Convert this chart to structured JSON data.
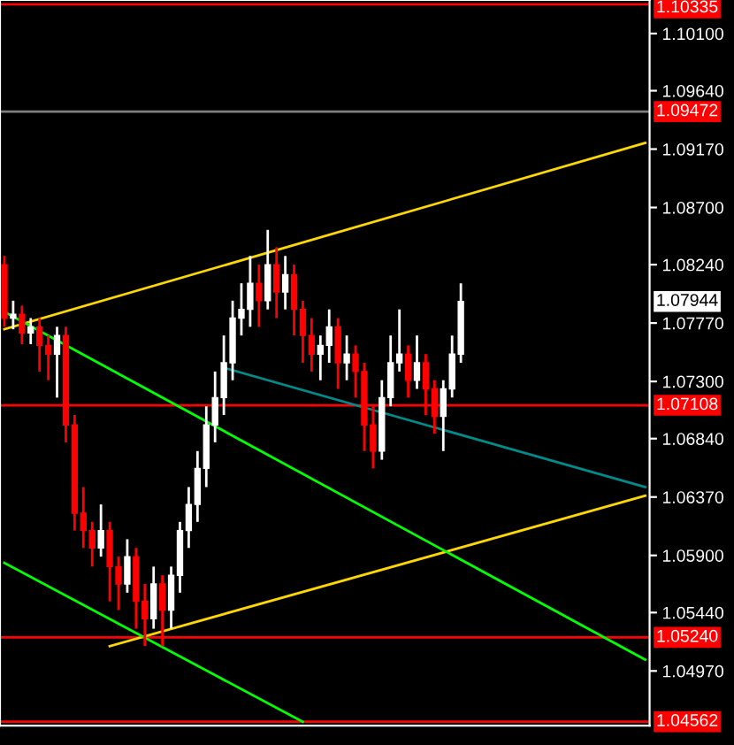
{
  "chart_data": {
    "type": "candlestick",
    "categories": [
      null,
      null,
      null,
      null,
      null,
      null,
      null,
      null,
      null,
      null,
      null,
      null,
      null,
      null,
      null,
      null,
      null,
      null,
      null,
      null,
      null,
      null,
      null,
      null,
      null,
      null,
      null,
      null,
      null,
      null,
      null,
      null,
      null,
      null,
      null,
      null,
      null,
      null,
      null,
      null,
      null,
      null,
      null,
      null,
      null,
      null,
      null,
      null,
      null,
      null,
      null,
      null,
      null,
      null,
      null,
      null,
      null,
      null,
      null,
      null,
      null,
      null,
      null,
      null,
      null,
      null,
      null,
      null,
      null,
      null,
      null,
      null,
      null,
      null
    ],
    "ohlc": [
      [
        1.0824,
        1.0831,
        1.0774,
        1.0781
      ],
      [
        1.0781,
        1.0795,
        1.0772,
        1.0784
      ],
      [
        1.0784,
        1.0791,
        1.076,
        1.0769
      ],
      [
        1.0769,
        1.0781,
        1.076,
        1.0774
      ],
      [
        1.0774,
        1.0781,
        1.0738,
        1.0759
      ],
      [
        1.0759,
        1.0767,
        1.0731,
        1.0752
      ],
      [
        1.0752,
        1.0774,
        1.0717,
        1.0767
      ],
      [
        1.0767,
        1.0774,
        1.0681,
        1.0695
      ],
      [
        1.0695,
        1.0703,
        1.061,
        1.0624
      ],
      [
        1.0624,
        1.0645,
        1.0596,
        1.061
      ],
      [
        1.061,
        1.0617,
        1.0581,
        1.0596
      ],
      [
        1.0596,
        1.0631,
        1.0589,
        1.061
      ],
      [
        1.061,
        1.0617,
        1.0553,
        1.0581
      ],
      [
        1.0581,
        1.0589,
        1.0546,
        1.0567
      ],
      [
        1.0567,
        1.0603,
        1.056,
        1.0589
      ],
      [
        1.0589,
        1.0596,
        1.0531,
        1.0553
      ],
      [
        1.0553,
        1.0567,
        1.0517,
        1.0539
      ],
      [
        1.0539,
        1.0581,
        1.0531,
        1.0567
      ],
      [
        1.0567,
        1.0574,
        1.0517,
        1.0546
      ],
      [
        1.0546,
        1.0581,
        1.0531,
        1.0574
      ],
      [
        1.0574,
        1.0617,
        1.056,
        1.061
      ],
      [
        1.061,
        1.0645,
        1.0596,
        1.0631
      ],
      [
        1.0631,
        1.0674,
        1.0617,
        1.066
      ],
      [
        1.066,
        1.071,
        1.0645,
        1.0695
      ],
      [
        1.0695,
        1.0738,
        1.0681,
        1.0717
      ],
      [
        1.0717,
        1.0767,
        1.0703,
        1.0745
      ],
      [
        1.0745,
        1.0795,
        1.0731,
        1.0781
      ],
      [
        1.0781,
        1.0809,
        1.0767,
        1.0788
      ],
      [
        1.0788,
        1.0831,
        1.0774,
        1.0809
      ],
      [
        1.0809,
        1.0824,
        1.0774,
        1.0795
      ],
      [
        1.0795,
        1.0852,
        1.0788,
        1.0824
      ],
      [
        1.0824,
        1.0838,
        1.0781,
        1.0802
      ],
      [
        1.0802,
        1.0831,
        1.0788,
        1.0816
      ],
      [
        1.0816,
        1.0824,
        1.0767,
        1.0788
      ],
      [
        1.0788,
        1.0795,
        1.0745,
        1.0767
      ],
      [
        1.0767,
        1.0781,
        1.0738,
        1.0752
      ],
      [
        1.0752,
        1.0767,
        1.0731,
        1.0759
      ],
      [
        1.0759,
        1.0788,
        1.0745,
        1.0774
      ],
      [
        1.0774,
        1.0781,
        1.0724,
        1.0745
      ],
      [
        1.0745,
        1.0767,
        1.0731,
        1.0752
      ],
      [
        1.0752,
        1.0759,
        1.0717,
        1.0738
      ],
      [
        1.0738,
        1.0745,
        1.0674,
        1.0695
      ],
      [
        1.0695,
        1.071,
        1.066,
        1.0674
      ],
      [
        1.0674,
        1.0731,
        1.0667,
        1.0717
      ],
      [
        1.0717,
        1.0767,
        1.071,
        1.0745
      ],
      [
        1.0745,
        1.0788,
        1.0738,
        1.0752
      ],
      [
        1.0752,
        1.0759,
        1.0717,
        1.0731
      ],
      [
        1.0731,
        1.0767,
        1.0724,
        1.0745
      ],
      [
        1.0745,
        1.0752,
        1.0703,
        1.0724
      ],
      [
        1.0724,
        1.0731,
        1.0688,
        1.0702
      ],
      [
        1.0702,
        1.0731,
        1.0674,
        1.0724
      ],
      [
        1.0724,
        1.0767,
        1.0717,
        1.0752
      ],
      [
        1.0752,
        1.0809,
        1.0745,
        1.07944
      ],
      null,
      null,
      null,
      null,
      null,
      null,
      null,
      null,
      null,
      null,
      null,
      null,
      null,
      null,
      null,
      null,
      null,
      null,
      null,
      null,
      null
    ],
    "colors": [
      "#ff0000",
      "#ffffff",
      "#ff0000",
      "#ffffff",
      "#ff0000",
      "#ff0000",
      "#ffffff",
      "#ff0000",
      "#ff0000",
      "#ff0000",
      "#ff0000",
      "#ffffff",
      "#ff0000",
      "#ff0000",
      "#ffffff",
      "#ff0000",
      "#ff0000",
      "#ffffff",
      "#ff0000",
      "#ffffff",
      "#ffffff",
      "#ffffff",
      "#ffffff",
      "#ffffff",
      "#ffffff",
      "#ffffff",
      "#ffffff",
      "#ffffff",
      "#ffffff",
      "#ff0000",
      "#ffffff",
      "#ff0000",
      "#ffffff",
      "#ff0000",
      "#ff0000",
      "#ff0000",
      "#ffffff",
      "#ffffff",
      "#ff0000",
      "#ffffff",
      "#ff0000",
      "#ff0000",
      "#ff0000",
      "#ffffff",
      "#ffffff",
      "#ffffff",
      "#ff0000",
      "#ffffff",
      "#ff0000",
      "#ff0000",
      "#ffffff",
      "#ffffff",
      "#ffffff",
      null,
      null,
      null,
      null,
      null,
      null,
      null,
      null,
      null,
      null,
      null,
      null,
      null,
      null,
      null,
      null,
      null,
      null,
      null,
      null,
      null
    ],
    "series": [
      {
        "type": "line",
        "color": "#ffd700",
        "values": [
          1.0772,
          null,
          null,
          null,
          null,
          null,
          null,
          null,
          null,
          null,
          null,
          null,
          null,
          null,
          null,
          null,
          null,
          null,
          null,
          null,
          null,
          null,
          null,
          null,
          null,
          null,
          null,
          null,
          null,
          null,
          null,
          null,
          null,
          null,
          null,
          null,
          null,
          null,
          null,
          null,
          null,
          null,
          null,
          null,
          null,
          null,
          null,
          null,
          null,
          null,
          null,
          null,
          null,
          null,
          null,
          null,
          null,
          null,
          null,
          null,
          null,
          null,
          null,
          null,
          null,
          null,
          null,
          null,
          null,
          null,
          null,
          null,
          null,
          1.0922
        ]
      },
      {
        "type": "line",
        "color": "#ffd700",
        "values": [
          null,
          null,
          null,
          null,
          null,
          null,
          null,
          null,
          null,
          null,
          null,
          null,
          1.0517,
          null,
          null,
          null,
          null,
          null,
          null,
          null,
          null,
          null,
          null,
          null,
          null,
          null,
          null,
          null,
          null,
          null,
          null,
          null,
          null,
          null,
          null,
          null,
          null,
          null,
          null,
          null,
          null,
          null,
          null,
          null,
          null,
          null,
          null,
          null,
          null,
          null,
          null,
          null,
          null,
          null,
          null,
          null,
          null,
          null,
          null,
          null,
          null,
          null,
          null,
          null,
          null,
          null,
          null,
          null,
          null,
          null,
          null,
          null,
          null,
          1.0638
        ]
      },
      {
        "type": "line",
        "color": "#00ff00",
        "values": [
          1.0786,
          null,
          null,
          null,
          null,
          null,
          null,
          null,
          null,
          null,
          null,
          null,
          null,
          null,
          null,
          null,
          null,
          null,
          null,
          null,
          null,
          null,
          null,
          null,
          null,
          null,
          null,
          null,
          null,
          null,
          null,
          null,
          null,
          null,
          null,
          null,
          null,
          null,
          null,
          null,
          null,
          null,
          null,
          null,
          null,
          null,
          null,
          null,
          null,
          null,
          null,
          null,
          null,
          null,
          null,
          null,
          null,
          null,
          null,
          null,
          null,
          null,
          null,
          null,
          null,
          null,
          null,
          null,
          null,
          null,
          null,
          null,
          null,
          1.0506
        ]
      },
      {
        "type": "line",
        "color": "#00ff00",
        "values": [
          1.0584,
          null,
          null,
          null,
          null,
          null,
          null,
          null,
          null,
          null,
          null,
          null,
          null,
          null,
          null,
          null,
          null,
          null,
          null,
          null,
          null,
          null,
          null,
          null,
          null,
          null,
          null,
          null,
          null,
          null,
          null,
          null,
          null,
          null,
          1.0456,
          null,
          null,
          null,
          null,
          null,
          null,
          null,
          null,
          null,
          null,
          null,
          null,
          null,
          null,
          null,
          null,
          null,
          null,
          null,
          null,
          null,
          null,
          null,
          null,
          null,
          null,
          null,
          null,
          null,
          null,
          null,
          null,
          null,
          null,
          null,
          null,
          null,
          null,
          null
        ]
      },
      {
        "type": "line",
        "color": "#008b8b",
        "values": [
          null,
          null,
          null,
          null,
          null,
          null,
          null,
          null,
          null,
          null,
          null,
          null,
          null,
          null,
          null,
          null,
          null,
          null,
          null,
          null,
          null,
          null,
          null,
          null,
          null,
          1.0741,
          null,
          null,
          null,
          null,
          null,
          null,
          null,
          null,
          null,
          null,
          null,
          null,
          null,
          null,
          null,
          null,
          null,
          null,
          null,
          null,
          null,
          null,
          null,
          null,
          null,
          null,
          null,
          null,
          null,
          null,
          null,
          null,
          null,
          null,
          null,
          null,
          null,
          null,
          null,
          null,
          null,
          null,
          null,
          null,
          null,
          null,
          null,
          1.0645
        ]
      }
    ],
    "ylim": [
      1.0453,
      1.1037
    ],
    "yticks": [
      {
        "value": 1.101,
        "label": "1.10100"
      },
      {
        "value": 1.0964,
        "label": "1.09640"
      },
      {
        "value": 1.0917,
        "label": "1.09170"
      },
      {
        "value": 1.087,
        "label": "1.08700"
      },
      {
        "value": 1.0824,
        "label": "1.08240"
      },
      {
        "value": 1.0777,
        "label": "1.07770"
      },
      {
        "value": 1.073,
        "label": "1.07300"
      },
      {
        "value": 1.0684,
        "label": "1.06840"
      },
      {
        "value": 1.0637,
        "label": "1.06370"
      },
      {
        "value": 1.059,
        "label": "1.05900"
      },
      {
        "value": 1.0544,
        "label": "1.05440"
      },
      {
        "value": 1.0497,
        "label": "1.04970"
      }
    ],
    "tick_labels": "y",
    "ref_lines": [
      {
        "axis": "y",
        "value": 1.10335,
        "label": "1.10335",
        "color": "#ff0000"
      },
      {
        "axis": "y",
        "value": 1.09472,
        "label": "1.09472",
        "color": "#808080"
      },
      {
        "axis": "y",
        "value": 1.07108,
        "label": "1.07108",
        "color": "#ff0000"
      },
      {
        "axis": "y",
        "value": 1.0524,
        "label": "1.05240",
        "color": "#ff0000"
      },
      {
        "axis": "y",
        "value": 1.04562,
        "label": "1.04562",
        "color": "#ff0000"
      }
    ],
    "annotations": [
      "1.07944"
    ],
    "grid": false,
    "legend": false
  }
}
